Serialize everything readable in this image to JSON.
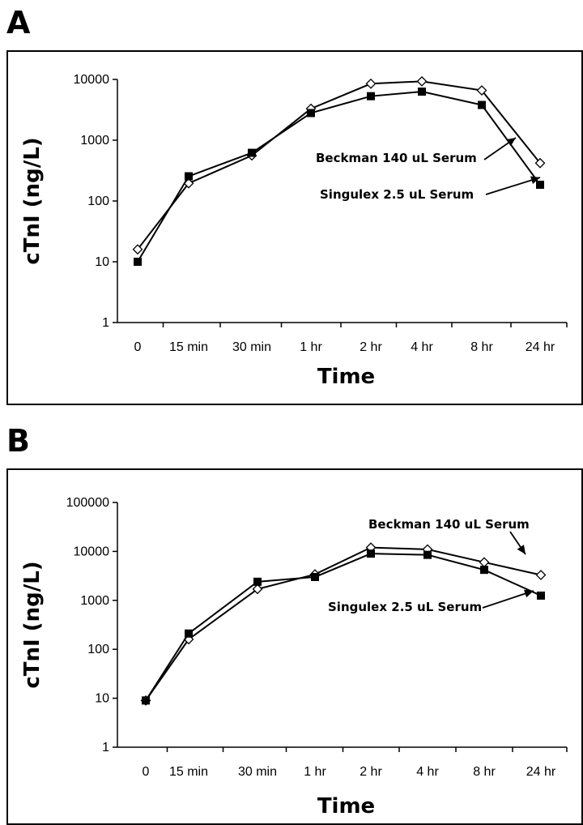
{
  "chart_data": [
    {
      "panel": "A",
      "type": "line",
      "xlabel": "Time",
      "ylabel": "cTnI (ng/L)",
      "yscale": "log",
      "ylim": [
        1,
        10000
      ],
      "yticks": [
        "1",
        "10",
        "100",
        "1000",
        "10000"
      ],
      "categories": [
        "0",
        "15 min",
        "30 min",
        "1 hr",
        "2 hr",
        "4 hr",
        "8 hr",
        "24 hr"
      ],
      "series": [
        {
          "name": "Beckman 140 uL Serum",
          "marker": "open-diamond",
          "values": [
            16,
            195,
            560,
            3300,
            8500,
            9300,
            6600,
            420
          ]
        },
        {
          "name": "Singulex 2.5 uL Serum",
          "marker": "filled-square",
          "values": [
            10,
            255,
            620,
            2800,
            5300,
            6300,
            3800,
            185
          ]
        }
      ],
      "annotations": [
        "Beckman 140 uL Serum",
        "Singulex 2.5 uL Serum"
      ],
      "grid": false
    },
    {
      "panel": "B",
      "type": "line",
      "xlabel": "Time",
      "ylabel": "cTnI (ng/L)",
      "yscale": "log",
      "ylim": [
        1,
        100000
      ],
      "yticks": [
        "1",
        "10",
        "100",
        "1000",
        "10000",
        "100000"
      ],
      "categories": [
        "0",
        "15 min",
        "30 min",
        "1 hr",
        "2 hr",
        "4 hr",
        "8 hr",
        "24 hr"
      ],
      "series": [
        {
          "name": "Beckman 140 uL Serum",
          "marker": "open-diamond",
          "values": [
            9,
            160,
            1700,
            3400,
            12000,
            11000,
            6000,
            3300
          ]
        },
        {
          "name": "Singulex 2.5 uL Serum",
          "marker": "filled-square",
          "values": [
            9,
            210,
            2400,
            3000,
            9000,
            8500,
            4200,
            1250
          ]
        }
      ],
      "annotations": [
        "Beckman 140 uL Serum",
        "Singulex 2.5 uL Serum"
      ],
      "grid": false
    }
  ]
}
